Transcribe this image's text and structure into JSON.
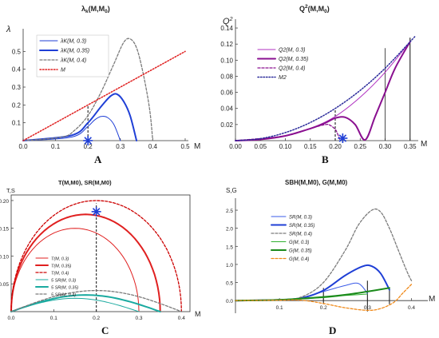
{
  "panels": [
    {
      "letter": "A",
      "title": "λk(M,M0)",
      "title_main": "λ",
      "title_sub": "k",
      "title_tail": "(M,M",
      "title_sub2": "0",
      "title_end": ")",
      "ylabel": "λ",
      "xlabel": "M",
      "xticks": [
        "0.0",
        "0.1",
        "0.2",
        "0.3",
        "0.4",
        "0.5"
      ],
      "yticks": [
        "0.1",
        "0.2",
        "0.3",
        "0.4",
        "0.5"
      ]
    },
    {
      "letter": "B",
      "title": "Q2(M,M0)",
      "title_main": "Q",
      "title_sup": "2",
      "title_tail": "(M,M",
      "title_sub2": "0",
      "title_end": ")",
      "ylabel": "Q",
      "ylabel_sup": "2",
      "xlabel": "M",
      "xticks": [
        "0.00",
        "0.05",
        "0.10",
        "0.15",
        "0.20",
        "0.25",
        "0.30",
        "0.35"
      ],
      "yticks": [
        "0.02",
        "0.04",
        "0.06",
        "0.08",
        "0.10",
        "0.12",
        "0.14"
      ]
    },
    {
      "letter": "C",
      "title": "T(M,M0), SR(M,M0)",
      "ylabel": "T,S",
      "xlabel": "M",
      "xticks": [
        "0.0",
        "0.1",
        "0.2",
        "0.3",
        "0.4"
      ],
      "yticks": [
        "0.05",
        "0.10",
        "0.15",
        "0.20"
      ]
    },
    {
      "letter": "D",
      "title": "SBH(M,M0), G(M,M0)",
      "ylabel": "S,G",
      "xlabel": "M",
      "xticks": [
        "0.1",
        "0.2",
        "0.3",
        "0.4"
      ],
      "yticks": [
        "0.0",
        "0.5",
        "1.0",
        "1.5",
        "2.0",
        "2.5"
      ]
    }
  ],
  "legend_text": {
    "a": [
      "λK(M, 0.3)",
      "λK(M, 0.35)",
      "λK(M, 0.4)",
      "M"
    ],
    "b": [
      "Q2(M, 0.3)",
      "Q2(M, 0.35)",
      "Q2(M, 0.4)",
      "M2"
    ],
    "c": [
      "T(M, 0.3)",
      "T(M, 0.35)",
      "T(M, 0.4)",
      "5 SR(M, 0.3)",
      "5 SR(M, 0.35)",
      "5 SR(M, 0.4)"
    ],
    "d": [
      "SR(M, 0.3)",
      "SR(M, 0.35)",
      "SR(M, 0.4)",
      "G(M, 0.3)",
      "G(M, 0.35)",
      "G(M, 0.4)"
    ]
  },
  "colors": {
    "blue": "#1f3fd6",
    "blue_light": "#3a5be8",
    "gray": "#7a7a7a",
    "red": "#e02020",
    "red_dark": "#cc0000",
    "navy": "#2a2a9a",
    "purple": "#b030c0",
    "purple_dark": "#8a1090",
    "teal": "#1aaaa0",
    "green": "#30b030",
    "green_dark": "#1a8a1a",
    "orange": "#f08a1a"
  },
  "chart_data": [
    {
      "panel": "A",
      "type": "line",
      "title": "λk(M,M0)",
      "xlabel": "M",
      "ylabel": "λ",
      "xlim": [
        0,
        0.5
      ],
      "ylim": [
        0,
        0.6
      ],
      "series": [
        {
          "name": "λK(M, 0.3)",
          "style": "solid",
          "color": "#1f3fd6",
          "x": [
            0,
            0.15,
            0.2,
            0.22,
            0.24,
            0.26,
            0.28,
            0.3
          ],
          "y": [
            0,
            0.02,
            0.08,
            0.115,
            0.135,
            0.13,
            0.09,
            0
          ]
        },
        {
          "name": "λK(M, 0.35)",
          "style": "solid-thick",
          "color": "#1f3fd6",
          "x": [
            0,
            0.15,
            0.2,
            0.24,
            0.27,
            0.29,
            0.31,
            0.33,
            0.35
          ],
          "y": [
            0,
            0.03,
            0.1,
            0.19,
            0.25,
            0.26,
            0.22,
            0.14,
            0
          ]
        },
        {
          "name": "λK(M, 0.4)",
          "style": "dashed",
          "color": "#7a7a7a",
          "x": [
            0,
            0.12,
            0.16,
            0.2,
            0.24,
            0.28,
            0.31,
            0.33,
            0.35,
            0.37,
            0.39,
            0.4
          ],
          "y": [
            0,
            0.02,
            0.06,
            0.14,
            0.27,
            0.43,
            0.55,
            0.57,
            0.52,
            0.38,
            0.18,
            0
          ]
        },
        {
          "name": "M",
          "style": "dotted",
          "color": "#e02020",
          "x": [
            0,
            0.5
          ],
          "y": [
            0,
            0.5
          ]
        }
      ],
      "markers": [
        {
          "x": 0.2,
          "y": 0.0,
          "symbol": "star"
        }
      ],
      "vlines": [
        {
          "x": 0.2,
          "y0": 0,
          "y1": 0.2,
          "style": "dashed"
        }
      ]
    },
    {
      "panel": "B",
      "type": "line",
      "title": "Q2(M,M0)",
      "xlabel": "M",
      "ylabel": "Q2",
      "xlim": [
        0,
        0.36
      ],
      "ylim": [
        0,
        0.145
      ],
      "series": [
        {
          "name": "Q2(M, 0.3)",
          "style": "solid",
          "color": "#b030c0",
          "x": [
            0,
            0.05,
            0.1,
            0.15,
            0.2,
            0.25,
            0.3,
            0.35
          ],
          "y": [
            0,
            0.0015,
            0.006,
            0.015,
            0.03,
            0.054,
            0.085,
            0.123
          ]
        },
        {
          "name": "Q2(M, 0.35)",
          "style": "solid-thick",
          "color": "#8a1090",
          "x": [
            0,
            0.05,
            0.1,
            0.15,
            0.18,
            0.2,
            0.22,
            0.24,
            0.26,
            0.28,
            0.3,
            0.32,
            0.35
          ],
          "y": [
            0,
            0.0015,
            0.006,
            0.015,
            0.022,
            0.028,
            0.029,
            0.02,
            0.001,
            0.03,
            0.06,
            0.09,
            0.123
          ]
        },
        {
          "name": "Q2(M, 0.4)",
          "style": "dashed",
          "color": "#8a1090",
          "x": [
            0,
            0.1,
            0.15,
            0.18,
            0.19,
            0.2,
            0.205,
            0.21
          ],
          "y": [
            0,
            0.006,
            0.015,
            0.02,
            0.019,
            0.014,
            0.008,
            0.0
          ]
        },
        {
          "name": "M2",
          "style": "dotted",
          "color": "#2a2a9a",
          "x": [
            0,
            0.05,
            0.1,
            0.15,
            0.2,
            0.25,
            0.3,
            0.36
          ],
          "y": [
            0,
            0.0025,
            0.01,
            0.0225,
            0.04,
            0.0625,
            0.09,
            0.1296
          ]
        }
      ],
      "markers": [
        {
          "x": 0.215,
          "y": 0.003,
          "symbol": "star"
        }
      ],
      "vlines": [
        {
          "x": 0.2,
          "y0": 0,
          "y1": 0.04,
          "style": "dashed"
        },
        {
          "x": 0.3,
          "y0": 0,
          "y1": 0.115,
          "style": "solid-thin"
        },
        {
          "x": 0.35,
          "y0": 0,
          "y1": 0.128,
          "style": "solid"
        }
      ]
    },
    {
      "panel": "C",
      "type": "line",
      "title": "T(M,M0), SR(M,M0)",
      "xlabel": "M",
      "ylabel": "T,S",
      "xlim": [
        0,
        0.42
      ],
      "ylim": [
        0,
        0.21
      ],
      "series": [
        {
          "name": "T(M, 0.3)",
          "style": "solid",
          "color": "#e02020",
          "semi_r": 0.15
        },
        {
          "name": "T(M, 0.35)",
          "style": "solid-thick",
          "color": "#e02020",
          "semi_r": 0.175
        },
        {
          "name": "T(M, 0.4)",
          "style": "dashed",
          "color": "#cc0000",
          "semi_r": 0.2
        },
        {
          "name": "5 SR(M, 0.3)",
          "style": "solid",
          "color": "#1aaaa0",
          "peak_x": 0.15,
          "peak_y": 0.024,
          "end_x": 0.3
        },
        {
          "name": "5 SR(M, 0.35)",
          "style": "solid-thick",
          "color": "#1aaaa0",
          "peak_x": 0.175,
          "peak_y": 0.03,
          "end_x": 0.35
        },
        {
          "name": "5 SR(M, 0.4)",
          "style": "dashed",
          "color": "#7a7a7a",
          "peak_x": 0.2,
          "peak_y": 0.038,
          "end_x": 0.4
        }
      ],
      "markers": [
        {
          "x": 0.2,
          "y": 0.18,
          "symbol": "star"
        }
      ],
      "vlines": [
        {
          "x": 0.2,
          "y0": 0,
          "y1": 0.195,
          "style": "dashed"
        }
      ]
    },
    {
      "panel": "D",
      "type": "line",
      "title": "SBH(M,M0), G(M,M0)",
      "xlabel": "M",
      "ylabel": "S,G",
      "xlim": [
        0,
        0.43
      ],
      "ylim": [
        -0.35,
        2.7
      ],
      "series": [
        {
          "name": "SR(M, 0.3)",
          "style": "solid",
          "color": "#3a5be8",
          "x": [
            0,
            0.1,
            0.15,
            0.2,
            0.25,
            0.28,
            0.3
          ],
          "y": [
            0,
            0.02,
            0.07,
            0.25,
            0.42,
            0.47,
            0.2
          ]
        },
        {
          "name": "SR(M, 0.35)",
          "style": "solid-thick",
          "color": "#1f3fd6",
          "x": [
            0,
            0.1,
            0.15,
            0.2,
            0.25,
            0.29,
            0.31,
            0.33,
            0.35
          ],
          "y": [
            0,
            0.02,
            0.07,
            0.28,
            0.7,
            0.95,
            0.95,
            0.75,
            0.3
          ]
        },
        {
          "name": "SR(M, 0.4)",
          "style": "dashed",
          "color": "#7a7a7a",
          "x": [
            0,
            0.1,
            0.15,
            0.2,
            0.25,
            0.28,
            0.31,
            0.33,
            0.35,
            0.37,
            0.39,
            0.4
          ],
          "y": [
            0,
            0.03,
            0.1,
            0.5,
            1.4,
            2.1,
            2.5,
            2.45,
            2.0,
            1.4,
            0.8,
            0.55
          ]
        },
        {
          "name": "G(M, 0.3)",
          "style": "solid",
          "color": "#30b030",
          "x": [
            0,
            0.1,
            0.2,
            0.25,
            0.3
          ],
          "y": [
            0,
            0.02,
            0.08,
            0.14,
            0.18
          ]
        },
        {
          "name": "G(M, 0.35)",
          "style": "solid-thick",
          "color": "#1a8a1a",
          "x": [
            0,
            0.1,
            0.2,
            0.25,
            0.3,
            0.35
          ],
          "y": [
            0,
            0.02,
            0.1,
            0.16,
            0.25,
            0.35
          ]
        },
        {
          "name": "G(M, 0.4)",
          "style": "dashed",
          "color": "#f08a1a",
          "x": [
            0,
            0.1,
            0.15,
            0.2,
            0.25,
            0.3,
            0.33,
            0.36,
            0.38,
            0.4
          ],
          "y": [
            0,
            0.01,
            0.01,
            -0.08,
            -0.2,
            -0.27,
            -0.22,
            -0.05,
            0.2,
            0.45
          ]
        }
      ],
      "vlines": [
        {
          "x": 0.2,
          "y0": -0.1,
          "y1": 0.35,
          "style": "solid"
        },
        {
          "x": 0.3,
          "y0": -0.3,
          "y1": 0.55,
          "style": "solid"
        },
        {
          "x": 0.35,
          "y0": -0.1,
          "y1": 0.35,
          "style": "solid"
        }
      ]
    }
  ]
}
